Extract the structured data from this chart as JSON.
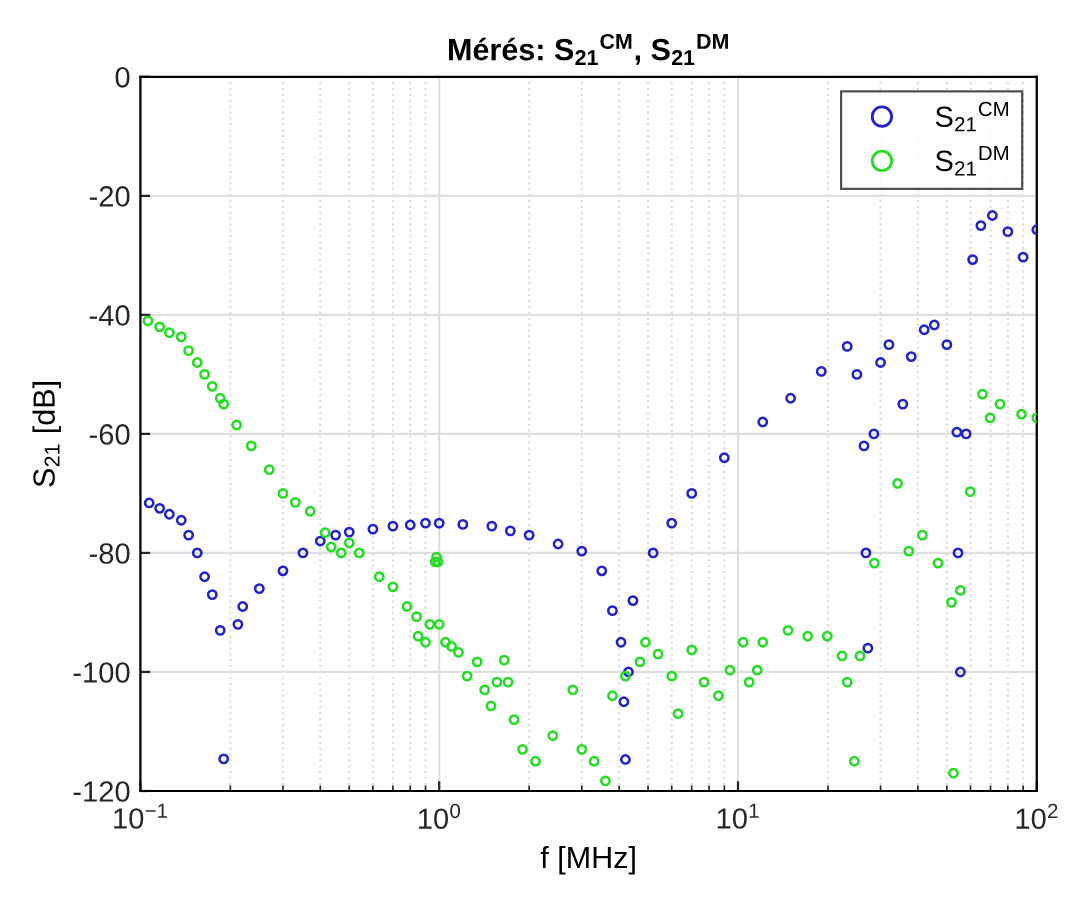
{
  "chart_data": {
    "type": "scatter",
    "title": "Mérés: S$_{21}$$^{CM}$, S$_{21}$$^{DM}$",
    "xlabel": "f [MHz]",
    "ylabel": "S$_{21}$ [dB]",
    "log": "x",
    "xlim": [
      0.1,
      100
    ],
    "ylim": [
      -120,
      0
    ],
    "xticks": [
      {
        "value": 0.1,
        "label": "10$^{−1}$"
      },
      {
        "value": 1,
        "label": "10$^{0}$"
      },
      {
        "value": 10,
        "label": "10$^{1}$"
      },
      {
        "value": 100,
        "label": "10$^{2}$"
      }
    ],
    "yticks": [
      -120,
      -100,
      -80,
      -60,
      -40,
      -20,
      0
    ],
    "grid": true,
    "legend": "top right",
    "marker": "circle",
    "series": [
      {
        "name": "S$_{21}$$^{CM}$",
        "color": "#2222cc",
        "x": [
          0.107,
          0.116,
          0.125,
          0.137,
          0.145,
          0.155,
          0.164,
          0.174,
          0.185,
          0.19,
          0.212,
          0.22,
          0.25,
          0.3,
          0.35,
          0.4,
          0.45,
          0.5,
          0.6,
          0.7,
          0.8,
          0.9,
          1.0,
          1.2,
          1.5,
          1.73,
          2.0,
          2.5,
          3.0,
          3.5,
          3.8,
          4.06,
          4.15,
          4.2,
          4.3,
          4.45,
          5.2,
          6.0,
          7.0,
          9.0,
          12.1,
          15,
          19,
          23.2,
          25,
          26.4,
          26.8,
          27.2,
          28.5,
          30,
          32,
          35.6,
          38,
          42,
          45.4,
          50,
          54,
          54.5,
          55.5,
          58,
          61,
          65,
          71,
          80,
          90,
          100
        ],
        "values": [
          -71.6,
          -72.5,
          -73.5,
          -74.5,
          -77,
          -80,
          -84,
          -87,
          -93,
          -114.6,
          -92,
          -89,
          -86,
          -83,
          -80,
          -78,
          -77,
          -76.5,
          -76,
          -75.5,
          -75.3,
          -75,
          -75,
          -75.2,
          -75.5,
          -76.3,
          -77,
          -78.5,
          -79.7,
          -83,
          -89.7,
          -95,
          -105,
          -114.7,
          -100,
          -88,
          -80,
          -75,
          -70,
          -64,
          -58,
          -54,
          -49.5,
          -45.3,
          -50,
          -62,
          -80,
          -96,
          -60,
          -48,
          -45,
          -55,
          -47,
          -42.5,
          -41.7,
          -45,
          -59.7,
          -80,
          -100,
          -60,
          -30.7,
          -25,
          -23.3,
          -26,
          -30.3,
          -25.7
        ]
      },
      {
        "name": "S$_{21}$$^{DM}$",
        "color": "#22dd22",
        "x": [
          0.106,
          0.116,
          0.125,
          0.137,
          0.145,
          0.155,
          0.164,
          0.174,
          0.185,
          0.19,
          0.21,
          0.235,
          0.27,
          0.3,
          0.33,
          0.37,
          0.415,
          0.435,
          0.47,
          0.5,
          0.54,
          0.63,
          0.7,
          0.78,
          0.84,
          0.85,
          0.9,
          0.93,
          0.97,
          0.98,
          0.99,
          1.0,
          1.05,
          1.1,
          1.16,
          1.24,
          1.34,
          1.42,
          1.49,
          1.56,
          1.65,
          1.7,
          1.78,
          1.9,
          2.1,
          2.4,
          2.8,
          3.0,
          3.3,
          3.6,
          3.8,
          4.2,
          4.7,
          4.9,
          5.4,
          6.0,
          6.3,
          7.0,
          7.7,
          8.6,
          9.4,
          10.4,
          10.9,
          11.6,
          12.1,
          14.7,
          17.1,
          19.9,
          22.3,
          23.2,
          24.5,
          25.6,
          28.6,
          34.2,
          37.3,
          41.4,
          46.7,
          51.8,
          52.6,
          55.5,
          59.9,
          65.8,
          69.8,
          75.3,
          88.9,
          100
        ],
        "values": [
          -41,
          -42,
          -43,
          -43.7,
          -46,
          -48,
          -50,
          -52,
          -54,
          -55,
          -58.5,
          -62,
          -66,
          -70,
          -71.5,
          -73,
          -76.6,
          -79,
          -80,
          -78.3,
          -80,
          -84,
          -85.7,
          -89,
          -90.7,
          -94,
          -95,
          -92,
          -81.5,
          -80.7,
          -81.5,
          -92,
          -95,
          -95.7,
          -96.7,
          -100.7,
          -98.3,
          -103,
          -105.7,
          -101.7,
          -98,
          -101.7,
          -108,
          -113,
          -115,
          -110.7,
          -103,
          -113,
          -115,
          -118.3,
          -104,
          -100.7,
          -98.3,
          -95,
          -97,
          -100.7,
          -107,
          -96.3,
          -101.7,
          -104,
          -99.7,
          -95,
          -101.7,
          -99.7,
          -95,
          -93,
          -94,
          -94,
          -97.3,
          -101.7,
          -115,
          -97.3,
          -81.7,
          -68.3,
          -79.7,
          -77,
          -81.7,
          -88.3,
          -117,
          -86.3,
          -69.7,
          -53.3,
          -57.3,
          -55,
          -56.7,
          -57.3
        ]
      }
    ]
  }
}
